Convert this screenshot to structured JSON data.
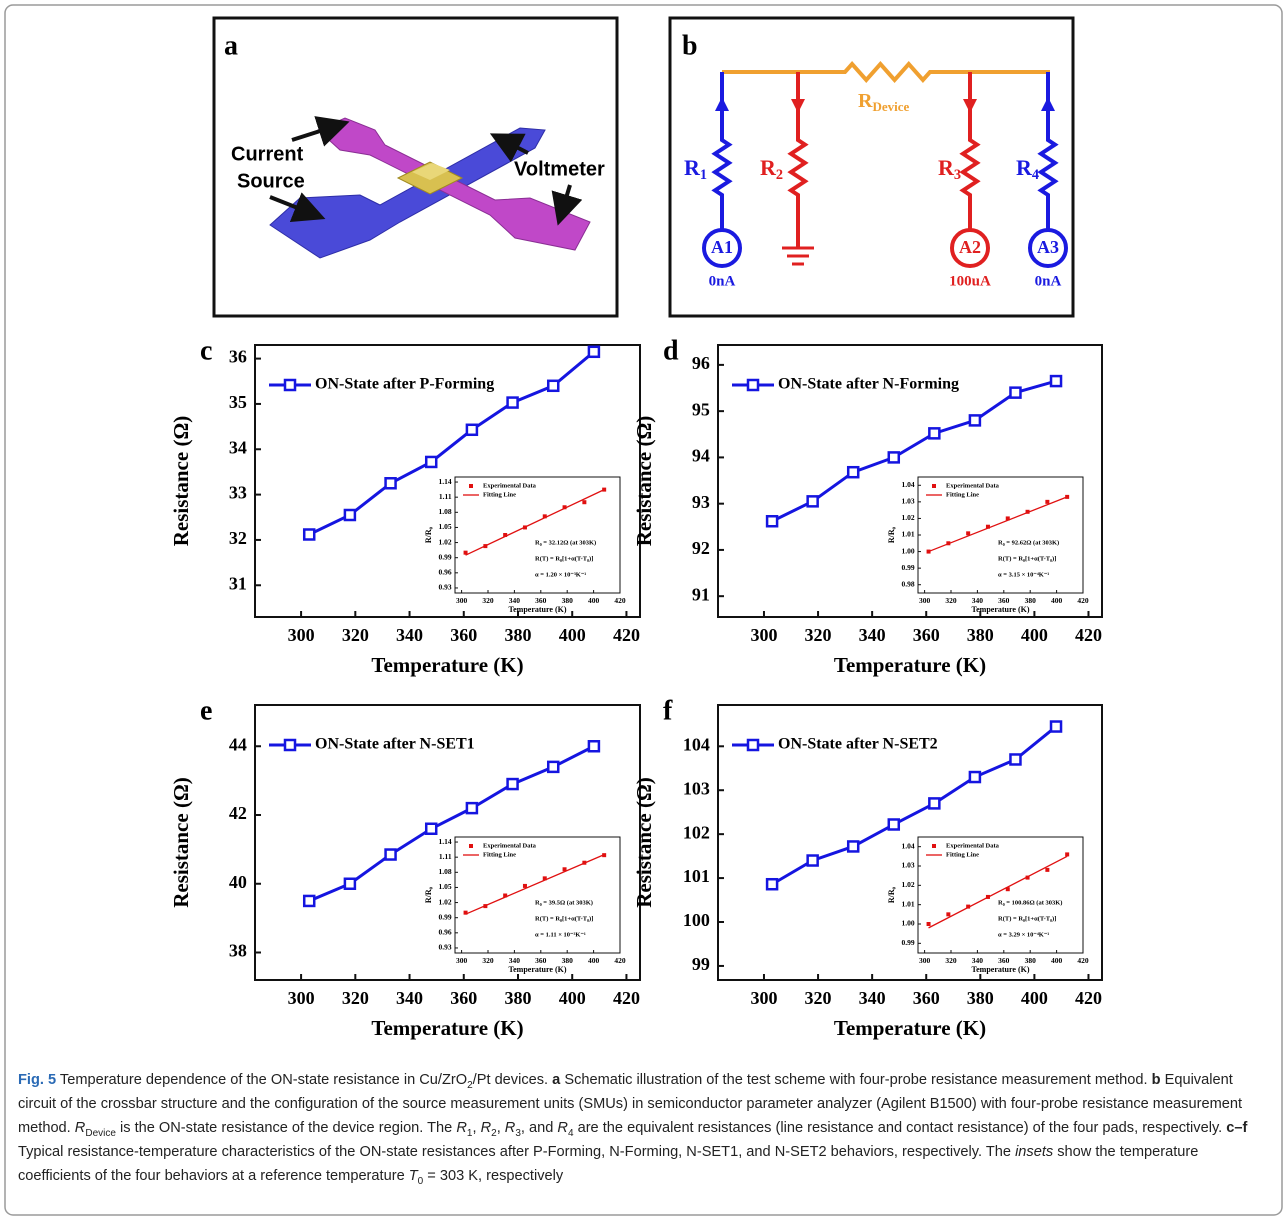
{
  "panel_a": {
    "letter": "a",
    "labels": [
      "Current",
      "Source",
      "Voltmeter"
    ]
  },
  "panel_b": {
    "letter": "b",
    "device": {
      "name": "R",
      "sub": "Device"
    },
    "resistors": [
      {
        "name": "R",
        "sub": "1"
      },
      {
        "name": "R",
        "sub": "2"
      },
      {
        "name": "R",
        "sub": "3"
      },
      {
        "name": "R",
        "sub": "4"
      }
    ],
    "meters": [
      {
        "label": "A1",
        "current": "0nA"
      },
      {
        "label": "A2",
        "current": "100uA"
      },
      {
        "label": "A3",
        "current": "0nA"
      }
    ]
  },
  "chart_data": [
    {
      "type": "line",
      "panel": "c",
      "x_label": "Temperature (K)",
      "y_label": "Resistance (Ω)",
      "x": [
        303,
        318,
        333,
        348,
        363,
        378,
        393,
        408
      ],
      "series": [
        {
          "name": "ON-State after P-Forming",
          "color": "#1515e0",
          "values": [
            32.12,
            32.55,
            33.25,
            33.72,
            34.43,
            35.03,
            35.4,
            36.15
          ]
        }
      ],
      "xlim": [
        283,
        425
      ],
      "xticks": [
        300,
        320,
        340,
        360,
        380,
        400,
        420
      ],
      "ylim": [
        30.3,
        36.3
      ],
      "yticks": [
        31,
        32,
        33,
        34,
        35,
        36
      ],
      "inset": {
        "x_label": "Temperature (K)",
        "y_label": "R/R₀",
        "x": [
          303,
          318,
          333,
          348,
          363,
          378,
          393,
          408
        ],
        "series": [
          {
            "name": "Experimental Data",
            "color": "#e01010",
            "values": [
              1.0,
              1.013,
              1.035,
              1.05,
              1.072,
              1.09,
              1.1,
              1.125
            ]
          },
          {
            "name": "Fitting Line",
            "color": "#e01010",
            "x": [
              303,
              408
            ],
            "values": [
              0.995,
              1.125
            ]
          }
        ],
        "xlim": [
          295,
          420
        ],
        "xticks": [
          300,
          320,
          340,
          360,
          380,
          400,
          420
        ],
        "ylim": [
          0.92,
          1.15
        ],
        "yticks": [
          0.93,
          0.96,
          0.99,
          1.02,
          1.05,
          1.08,
          1.11,
          1.14
        ],
        "annotations": [
          "R₀ = 32.12Ω (at 303K)",
          "R(T) = R₀[1+α(T-T₀)]",
          "α = 1.20 × 10⁻³K⁻¹"
        ]
      }
    },
    {
      "type": "line",
      "panel": "d",
      "x_label": "Temperature (K)",
      "y_label": "Resistance (Ω)",
      "x": [
        303,
        318,
        333,
        348,
        363,
        378,
        393,
        408
      ],
      "series": [
        {
          "name": "ON-State after N-Forming",
          "color": "#1515e0",
          "values": [
            92.62,
            93.05,
            93.68,
            94.0,
            94.52,
            94.8,
            95.4,
            95.65
          ]
        }
      ],
      "xlim": [
        283,
        425
      ],
      "xticks": [
        300,
        320,
        340,
        360,
        380,
        400,
        420
      ],
      "ylim": [
        90.55,
        96.43
      ],
      "yticks": [
        91,
        92,
        93,
        94,
        95,
        96
      ],
      "inset": {
        "x_label": "Temperature (K)",
        "y_label": "R/R₀",
        "x": [
          303,
          318,
          333,
          348,
          363,
          378,
          393,
          408
        ],
        "series": [
          {
            "name": "Experimental Data",
            "color": "#e01010",
            "values": [
              1.0,
              1.005,
              1.011,
              1.015,
              1.02,
              1.024,
              1.03,
              1.033
            ]
          },
          {
            "name": "Fitting Line",
            "color": "#e01010",
            "x": [
              303,
              408
            ],
            "values": [
              1.0,
              1.033
            ]
          }
        ],
        "xlim": [
          295,
          420
        ],
        "xticks": [
          300,
          320,
          340,
          360,
          380,
          400,
          420
        ],
        "ylim": [
          0.975,
          1.045
        ],
        "yticks": [
          0.98,
          0.99,
          {
            "value": 1,
            "label": "1.00"
          },
          1.01,
          1.02,
          1.03,
          1.04
        ],
        "annotations": [
          "R₀ = 92.62Ω (at 303K)",
          "R(T) = R₀[1+α(T-T₀)]",
          "α = 3.15 × 10⁻⁴K⁻¹"
        ]
      }
    },
    {
      "type": "line",
      "panel": "e",
      "x_label": "Temperature (K)",
      "y_label": "Resistance (Ω)",
      "x": [
        303,
        318,
        333,
        348,
        363,
        378,
        393,
        408
      ],
      "series": [
        {
          "name": "ON-State after N-SET1",
          "color": "#1515e0",
          "values": [
            39.5,
            40.0,
            40.85,
            41.6,
            42.2,
            42.9,
            43.4,
            44.0
          ]
        }
      ],
      "xlim": [
        283,
        425
      ],
      "xticks": [
        300,
        320,
        340,
        360,
        380,
        400,
        420
      ],
      "ylim": [
        37.2,
        45.2
      ],
      "yticks": [
        38,
        40,
        42,
        44
      ],
      "inset": {
        "x_label": "Temperature (K)",
        "y_label": "R/R₀",
        "x": [
          303,
          318,
          333,
          348,
          363,
          378,
          393,
          408
        ],
        "series": [
          {
            "name": "Experimental Data",
            "color": "#e01010",
            "values": [
              1.0,
              1.013,
              1.034,
              1.053,
              1.068,
              1.086,
              1.099,
              1.114
            ]
          },
          {
            "name": "Fitting Line",
            "color": "#e01010",
            "x": [
              303,
              408
            ],
            "values": [
              0.997,
              1.115
            ]
          }
        ],
        "xlim": [
          295,
          420
        ],
        "xticks": [
          300,
          320,
          340,
          360,
          380,
          400,
          420
        ],
        "ylim": [
          0.92,
          1.15
        ],
        "yticks": [
          0.93,
          0.96,
          0.99,
          1.02,
          1.05,
          1.08,
          1.11,
          1.14
        ],
        "annotations": [
          "R₀ = 39.5Ω (at 303K)",
          "R(T) = R₀[1+α(T-T₀)]",
          "α = 1.11 × 10⁻³K⁻¹"
        ]
      }
    },
    {
      "type": "line",
      "panel": "f",
      "x_label": "Temperature (K)",
      "y_label": "Resistance (Ω)",
      "x": [
        303,
        318,
        333,
        348,
        363,
        378,
        393,
        408
      ],
      "series": [
        {
          "name": "ON-State after N-SET2",
          "color": "#1515e0",
          "values": [
            100.86,
            101.4,
            101.72,
            102.22,
            102.7,
            103.3,
            103.7,
            104.45
          ]
        }
      ],
      "xlim": [
        283,
        425
      ],
      "xticks": [
        300,
        320,
        340,
        360,
        380,
        400,
        420
      ],
      "ylim": [
        98.68,
        104.94
      ],
      "yticks": [
        99,
        100,
        101,
        102,
        103,
        104
      ],
      "inset": {
        "x_label": "Temperature (K)",
        "y_label": "R/R₀",
        "x": [
          303,
          318,
          333,
          348,
          363,
          378,
          393,
          408
        ],
        "series": [
          {
            "name": "Experimental Data",
            "color": "#e01010",
            "values": [
              1.0,
              1.005,
              1.009,
              1.014,
              1.018,
              1.024,
              1.028,
              1.036
            ]
          },
          {
            "name": "Fitting Line",
            "color": "#e01010",
            "x": [
              303,
              408
            ],
            "values": [
              0.998,
              1.035
            ]
          }
        ],
        "xlim": [
          295,
          420
        ],
        "xticks": [
          300,
          320,
          340,
          360,
          380,
          400,
          420
        ],
        "ylim": [
          0.985,
          1.045
        ],
        "yticks": [
          0.99,
          {
            "value": 1,
            "label": "1.00"
          },
          1.01,
          1.02,
          1.03,
          1.04
        ],
        "annotations": [
          "R₀ = 100.86Ω (at 303K)",
          "R(T) = R₀[1+α(T-T₀)]",
          "α = 3.29 × 10⁻⁴K⁻¹"
        ]
      }
    }
  ],
  "caption": {
    "segments": [
      "Fig. 5",
      " Temperature dependence of the ON-state resistance in Cu/ZrO",
      "2",
      "/Pt devices. ",
      "a",
      " Schematic illustration of the test scheme with four-probe resistance measurement method. ",
      "b",
      " Equivalent circuit of the crossbar structure and the configuration of the source measurement units (SMUs) in semiconductor parameter analyzer (Agilent B1500) with four-probe resistance measurement method. ",
      "R",
      "Device",
      " is the ON-state resistance of the device region. The ",
      "R",
      "1",
      ", ",
      "R",
      "2",
      ", ",
      "R",
      "3",
      ", and ",
      "R",
      "4",
      " are the equivalent resistances (line resistance and contact resistance) of the four pads, respectively. ",
      "c–f",
      " Typical resistance-temperature characteristics of the ON-state resistances after P-Forming, N-Forming, N-SET1, and N-SET2 behaviors, respectively. The ",
      "insets",
      " show the temperature coefficients of the four behaviors at a reference temperature ",
      "T",
      "0",
      " = 303 K, respectively"
    ]
  }
}
